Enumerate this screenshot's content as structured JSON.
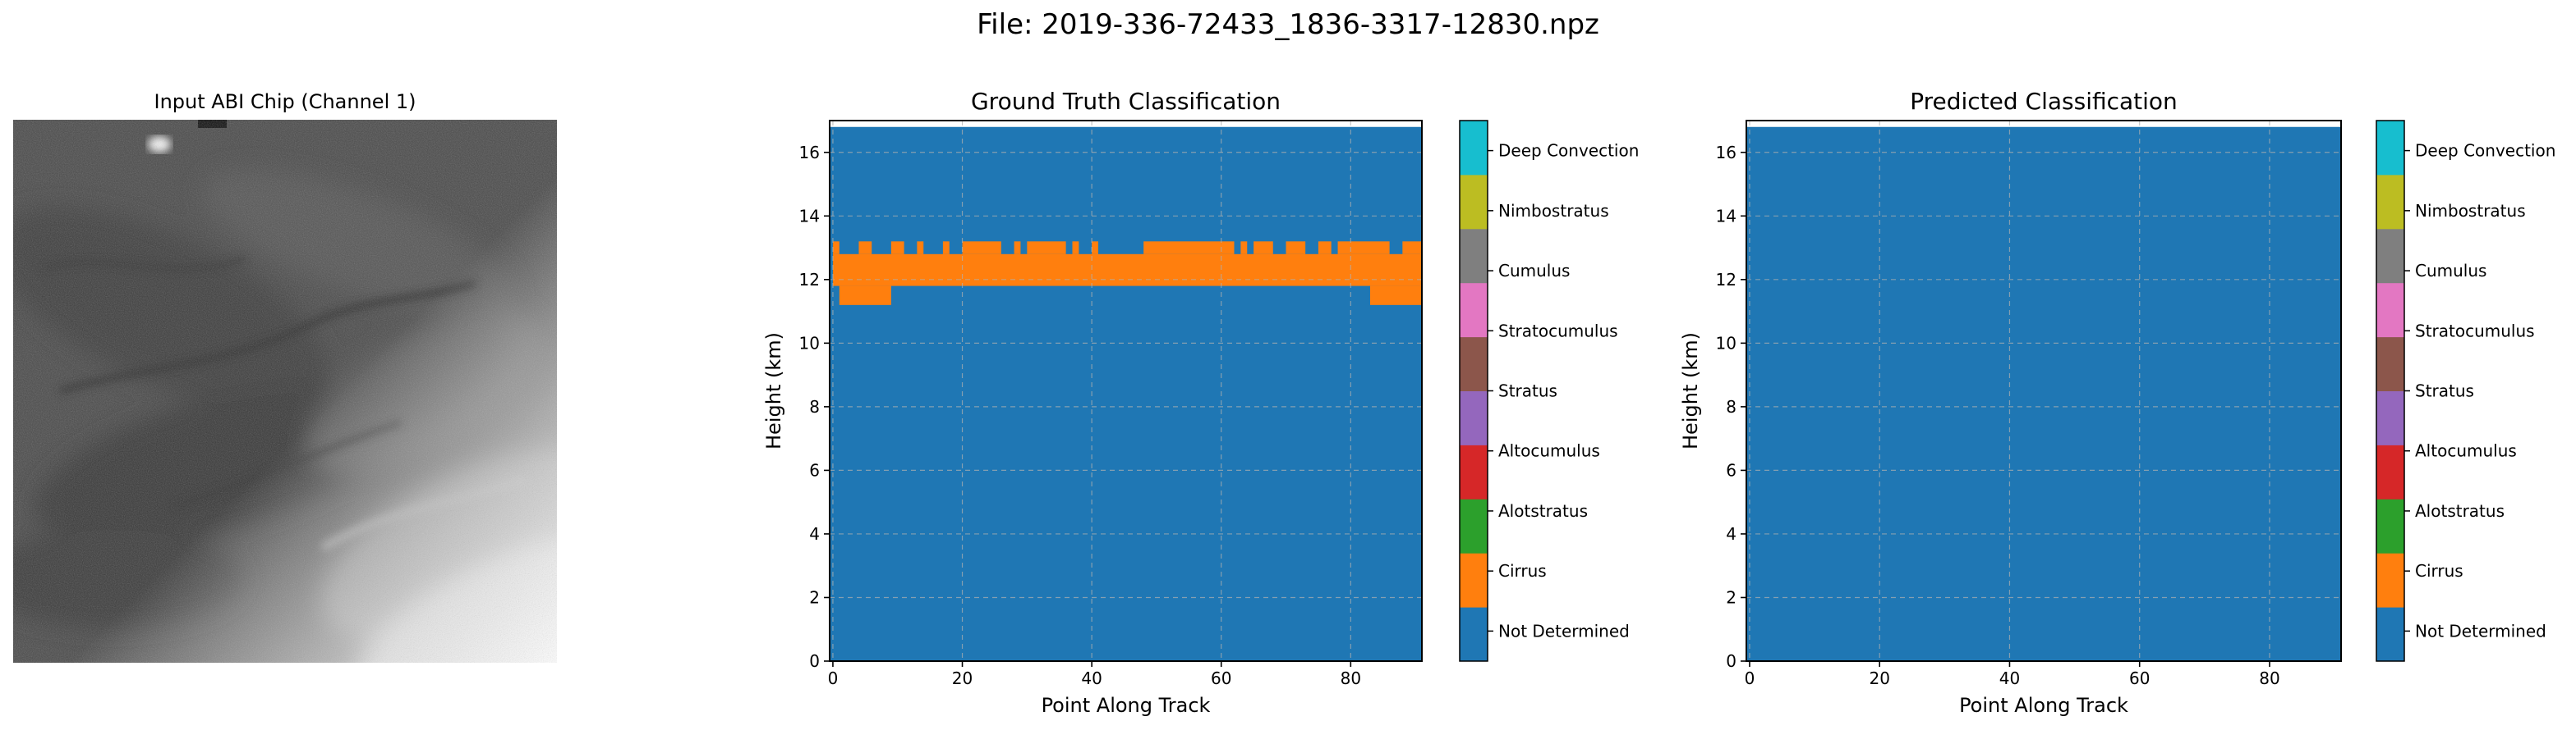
{
  "figure": {
    "title": "File: 2019-336-72433_1836-3317-12830.npz"
  },
  "input_panel": {
    "title": "Input ABI Chip (Channel 1)"
  },
  "colors": {
    "classes": [
      "#1f77b4",
      "#ff7f0e",
      "#2ca02c",
      "#d62728",
      "#9467bd",
      "#8c564b",
      "#e377c2",
      "#7f7f7f",
      "#bcbd22",
      "#17becf"
    ]
  },
  "chart_data": [
    {
      "type": "heatmap",
      "title": "Ground Truth Classification",
      "xlabel": "Point Along Track",
      "ylabel": "Height (km)",
      "xlim": [
        0,
        90
      ],
      "ylim": [
        0,
        17
      ],
      "xticks": [
        "0",
        "20",
        "40",
        "60",
        "80"
      ],
      "yticks": [
        "0",
        "2",
        "4",
        "6",
        "8",
        "10",
        "12",
        "14",
        "16"
      ],
      "grid": true,
      "colorbar": [
        "Not Determined",
        "Cirrus",
        "Alotstratus",
        "Altocumulus",
        "Stratus",
        "Stratocumulus",
        "Cumulus",
        "Nimbostratus",
        "Deep Convection"
      ],
      "background_class": "Not Determined",
      "data_top_km": 16.8,
      "layers": [
        {
          "class": "Cirrus",
          "x_start": 0,
          "x_end": 91,
          "base_km": 11.8,
          "top_km": 12.8
        },
        {
          "class": "Cirrus",
          "x_start": 1,
          "x_end": 9,
          "base_km": 11.2,
          "top_km": 11.8
        },
        {
          "class": "Cirrus",
          "x_start": 83,
          "x_end": 91,
          "base_km": 11.2,
          "top_km": 11.8
        },
        {
          "class": "Cirrus",
          "x_start": 0,
          "x_end": 1,
          "base_km": 12.8,
          "top_km": 13.2
        },
        {
          "class": "Cirrus",
          "x_start": 4,
          "x_end": 6,
          "base_km": 12.8,
          "top_km": 13.2
        },
        {
          "class": "Cirrus",
          "x_start": 9,
          "x_end": 11,
          "base_km": 12.8,
          "top_km": 13.2
        },
        {
          "class": "Cirrus",
          "x_start": 13,
          "x_end": 14,
          "base_km": 12.8,
          "top_km": 13.2
        },
        {
          "class": "Cirrus",
          "x_start": 17,
          "x_end": 18,
          "base_km": 12.8,
          "top_km": 13.2
        },
        {
          "class": "Cirrus",
          "x_start": 20,
          "x_end": 26,
          "base_km": 12.8,
          "top_km": 13.2
        },
        {
          "class": "Cirrus",
          "x_start": 28,
          "x_end": 29,
          "base_km": 12.8,
          "top_km": 13.2
        },
        {
          "class": "Cirrus",
          "x_start": 30,
          "x_end": 36,
          "base_km": 12.8,
          "top_km": 13.2
        },
        {
          "class": "Cirrus",
          "x_start": 37,
          "x_end": 38,
          "base_km": 12.8,
          "top_km": 13.2
        },
        {
          "class": "Cirrus",
          "x_start": 40,
          "x_end": 41,
          "base_km": 12.8,
          "top_km": 13.2
        },
        {
          "class": "Cirrus",
          "x_start": 48,
          "x_end": 62,
          "base_km": 12.8,
          "top_km": 13.2
        },
        {
          "class": "Cirrus",
          "x_start": 63,
          "x_end": 64,
          "base_km": 12.8,
          "top_km": 13.2
        },
        {
          "class": "Cirrus",
          "x_start": 65,
          "x_end": 68,
          "base_km": 12.8,
          "top_km": 13.2
        },
        {
          "class": "Cirrus",
          "x_start": 70,
          "x_end": 73,
          "base_km": 12.8,
          "top_km": 13.2
        },
        {
          "class": "Cirrus",
          "x_start": 75,
          "x_end": 77,
          "base_km": 12.8,
          "top_km": 13.2
        },
        {
          "class": "Cirrus",
          "x_start": 78,
          "x_end": 86,
          "base_km": 12.8,
          "top_km": 13.2
        },
        {
          "class": "Cirrus",
          "x_start": 88,
          "x_end": 91,
          "base_km": 12.8,
          "top_km": 13.2
        }
      ]
    },
    {
      "type": "heatmap",
      "title": "Predicted Classification",
      "xlabel": "Point Along Track",
      "ylabel": "Height (km)",
      "xlim": [
        0,
        90
      ],
      "ylim": [
        0,
        17
      ],
      "xticks": [
        "0",
        "20",
        "40",
        "60",
        "80"
      ],
      "yticks": [
        "0",
        "2",
        "4",
        "6",
        "8",
        "10",
        "12",
        "14",
        "16"
      ],
      "grid": true,
      "colorbar": [
        "Not Determined",
        "Cirrus",
        "Alotstratus",
        "Altocumulus",
        "Stratus",
        "Stratocumulus",
        "Cumulus",
        "Nimbostratus",
        "Deep Convection"
      ],
      "background_class": "Not Determined",
      "data_top_km": 16.8,
      "layers": []
    }
  ]
}
